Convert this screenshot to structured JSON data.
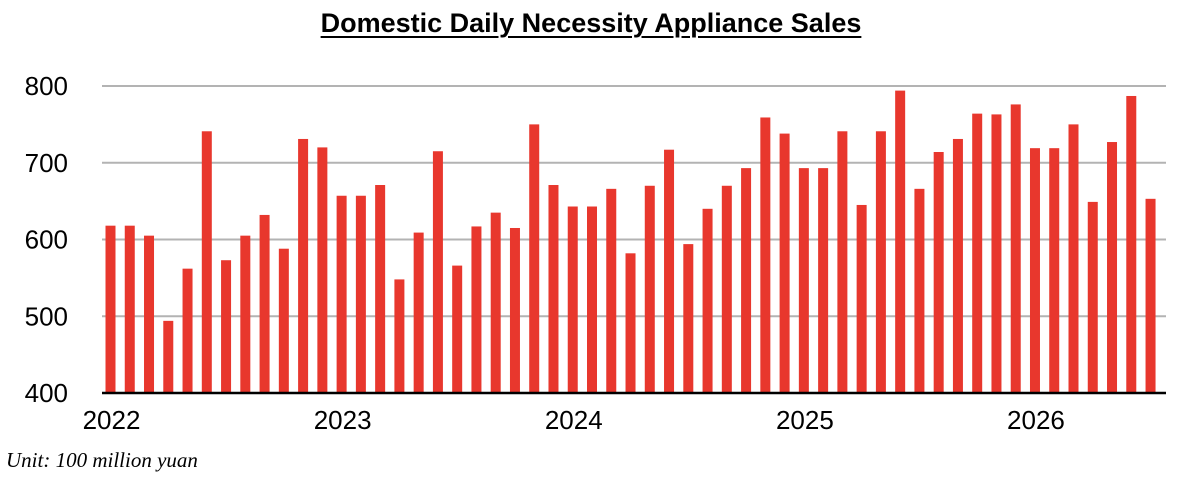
{
  "chart_data": {
    "type": "bar",
    "title": "Domestic Daily Necessity Appliance Sales",
    "xlabel": "",
    "ylabel": "",
    "note": "Unit: 100 million yuan",
    "ylim": [
      400,
      800
    ],
    "yticks": [
      "400",
      "500",
      "600",
      "700",
      "800"
    ],
    "xticks": [
      {
        "label": "2022",
        "index": 0
      },
      {
        "label": "2023",
        "index": 12
      },
      {
        "label": "2024",
        "index": 24
      },
      {
        "label": "2025",
        "index": 36
      },
      {
        "label": "2026",
        "index": 48
      }
    ],
    "grid": true,
    "legend": "none",
    "bar_color": "#e8372d",
    "series": [
      {
        "values": [
          618,
          618,
          605,
          494,
          562,
          741,
          573,
          605,
          632,
          588,
          731,
          720,
          657,
          657,
          671,
          548,
          609,
          715,
          566,
          617,
          635,
          615,
          750,
          671,
          643,
          643,
          666,
          582,
          670,
          717,
          594,
          640,
          670,
          693,
          759,
          738,
          693,
          693,
          741,
          645,
          741,
          794,
          666,
          714,
          731,
          764,
          763,
          776,
          719,
          719,
          750,
          649,
          727,
          787,
          653
        ]
      }
    ]
  }
}
